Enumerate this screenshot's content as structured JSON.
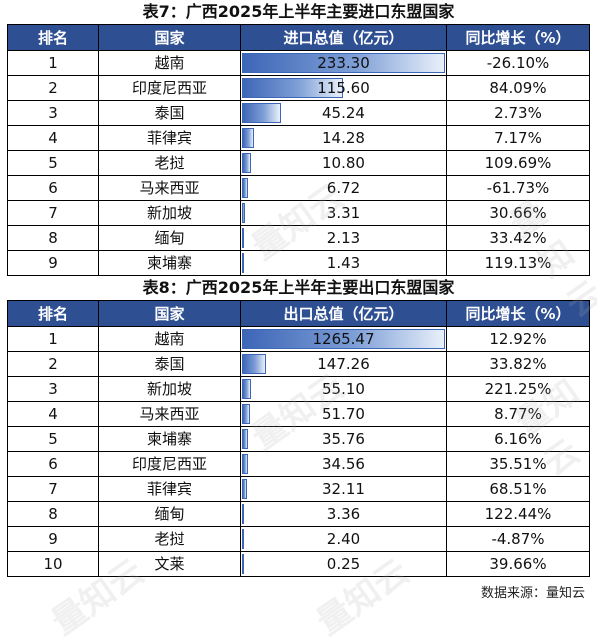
{
  "table1": {
    "title": "表7：广西2025年上半年主要进口东盟国家",
    "headers": [
      "排名",
      "国家",
      "进口总值（亿元）",
      "同比增长（%）"
    ],
    "max_value": 233.3,
    "rows": [
      {
        "rank": "1",
        "country": "越南",
        "value": "233.30",
        "growth": "-26.10%",
        "num": 233.3
      },
      {
        "rank": "2",
        "country": "印度尼西亚",
        "value": "115.60",
        "growth": "84.09%",
        "num": 115.6
      },
      {
        "rank": "3",
        "country": "泰国",
        "value": "45.24",
        "growth": "2.73%",
        "num": 45.24
      },
      {
        "rank": "4",
        "country": "菲律宾",
        "value": "14.28",
        "growth": "7.17%",
        "num": 14.28
      },
      {
        "rank": "5",
        "country": "老挝",
        "value": "10.80",
        "growth": "109.69%",
        "num": 10.8
      },
      {
        "rank": "6",
        "country": "马来西亚",
        "value": "6.72",
        "growth": "-61.73%",
        "num": 6.72
      },
      {
        "rank": "7",
        "country": "新加坡",
        "value": "3.31",
        "growth": "30.66%",
        "num": 3.31
      },
      {
        "rank": "8",
        "country": "缅甸",
        "value": "2.13",
        "growth": "33.42%",
        "num": 2.13
      },
      {
        "rank": "9",
        "country": "柬埔寨",
        "value": "1.43",
        "growth": "119.13%",
        "num": 1.43
      }
    ]
  },
  "table2": {
    "title": "表8：广西2025年上半年主要出口东盟国家",
    "headers": [
      "排名",
      "国家",
      "出口总值（亿元）",
      "同比增长（%）"
    ],
    "max_value": 1265.47,
    "rows": [
      {
        "rank": "1",
        "country": "越南",
        "value": "1265.47",
        "growth": "12.92%",
        "num": 1265.47
      },
      {
        "rank": "2",
        "country": "泰国",
        "value": "147.26",
        "growth": "33.82%",
        "num": 147.26
      },
      {
        "rank": "3",
        "country": "新加坡",
        "value": "55.10",
        "growth": "221.25%",
        "num": 55.1
      },
      {
        "rank": "4",
        "country": "马来西亚",
        "value": "51.70",
        "growth": "8.77%",
        "num": 51.7
      },
      {
        "rank": "5",
        "country": "柬埔寨",
        "value": "35.76",
        "growth": "6.16%",
        "num": 35.76
      },
      {
        "rank": "6",
        "country": "印度尼西亚",
        "value": "34.56",
        "growth": "35.51%",
        "num": 34.56
      },
      {
        "rank": "7",
        "country": "菲律宾",
        "value": "32.11",
        "growth": "68.51%",
        "num": 32.11
      },
      {
        "rank": "8",
        "country": "缅甸",
        "value": "3.36",
        "growth": "122.44%",
        "num": 3.36
      },
      {
        "rank": "9",
        "country": "老挝",
        "value": "2.40",
        "growth": "-4.87%",
        "num": 2.4
      },
      {
        "rank": "10",
        "country": "文莱",
        "value": "0.25",
        "growth": "39.66%",
        "num": 0.25
      }
    ]
  },
  "source": "数据来源：量知云",
  "watermark_text": "量知云",
  "colors": {
    "header_bg": "#2f4f93",
    "bar": "#3d66b7"
  }
}
